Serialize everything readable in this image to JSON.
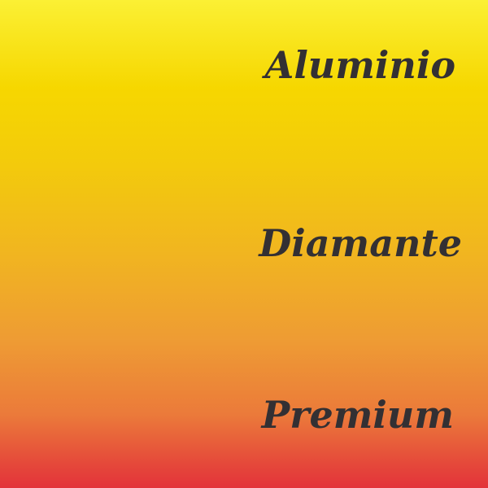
{
  "labels": [
    "Aluminio",
    "Diamante",
    "Premium"
  ],
  "colors": {
    "gradient_top": "#fbf034",
    "gradient_mid": "#f3cb0b",
    "gradient_bottom": "#e3333a",
    "text": "#333033"
  }
}
